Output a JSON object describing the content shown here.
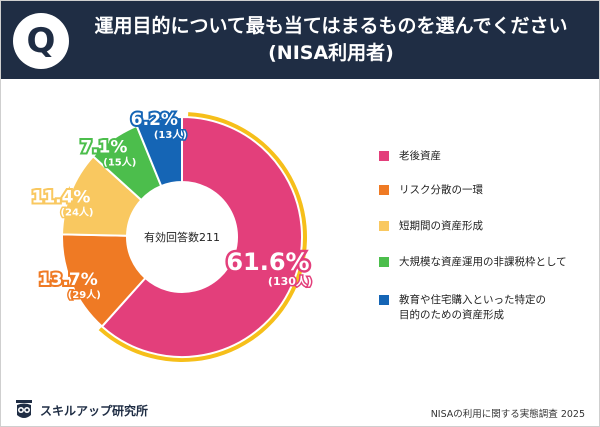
{
  "header": {
    "icon_letter": "Q",
    "title_line1": "運用目的について最も当てはまるものを選んでください",
    "title_line2": "(NISA利用者)"
  },
  "chart_data": {
    "type": "pie",
    "variant": "donut",
    "center_label": "有効回答数211",
    "total": 211,
    "series": [
      {
        "name": "老後資産",
        "percent": "61.6%",
        "count_label": "(130人)",
        "value": 130,
        "color": "#e33f7b"
      },
      {
        "name": "リスク分散の一環",
        "percent": "13.7%",
        "count_label": "(29人)",
        "value": 29,
        "color": "#ef7a24"
      },
      {
        "name": "短期間の資産形成",
        "percent": "11.4%",
        "count_label": "(24人)",
        "value": 24,
        "color": "#f9c860"
      },
      {
        "name": "大規模な資産運用の非課税枠として",
        "percent": "7.1%",
        "count_label": "(15人)",
        "value": 15,
        "color": "#4cbe4c"
      },
      {
        "name": "教育や住宅購入といった特定の目的のための資産形成",
        "percent": "6.2%",
        "count_label": "(13人)",
        "value": 13,
        "color": "#1565b5"
      }
    ],
    "highlight_color": "#f6bf1a",
    "legend_position": "right"
  },
  "legend": {
    "items": [
      {
        "label": "老後資産"
      },
      {
        "label": "リスク分散の一環"
      },
      {
        "label": "短期間の資産形成"
      },
      {
        "label": "大規模な資産運用の非課税枠として"
      },
      {
        "label": "教育や住宅購入といった特定の目的のための資産形成"
      }
    ]
  },
  "footer": {
    "brand": "スキルアップ研究所",
    "source": "NISAの利用に関する実態調査 2025"
  }
}
